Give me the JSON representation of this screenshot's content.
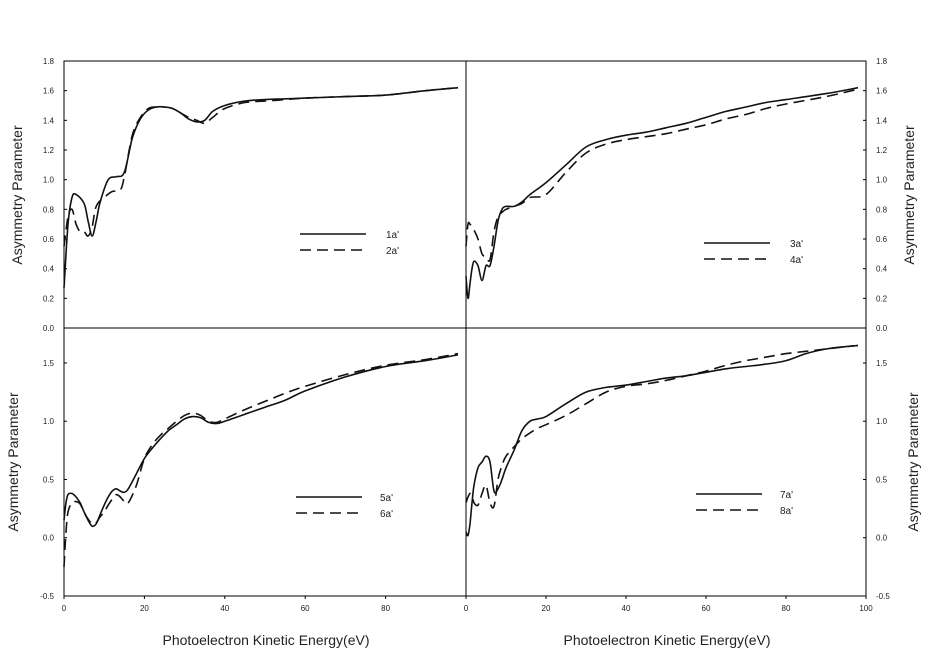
{
  "chart_data": [
    {
      "type": "line",
      "position": "top-left",
      "xlabel": "",
      "ylabel": "Asymmetry Parameter",
      "xlim": [
        0,
        100
      ],
      "ylim": [
        0.0,
        1.8
      ],
      "yticks": [
        "0.0",
        "0.2",
        "0.4",
        "0.6",
        "0.8",
        "1.0",
        "1.2",
        "1.4",
        "1.6",
        "1.8"
      ],
      "xticks": [],
      "legend_placement": "center-right",
      "series": [
        {
          "name": "1a'",
          "style": "solid",
          "x": [
            0,
            1,
            2,
            3,
            5,
            6,
            7,
            8,
            9,
            11,
            13,
            15,
            17,
            19,
            21,
            23,
            25,
            27,
            29,
            31,
            33,
            35,
            37,
            40,
            45,
            50,
            55,
            60,
            70,
            80,
            90,
            98
          ],
          "y": [
            0.27,
            0.7,
            0.88,
            0.9,
            0.84,
            0.72,
            0.62,
            0.72,
            0.85,
            1.0,
            1.02,
            1.05,
            1.28,
            1.41,
            1.47,
            1.49,
            1.49,
            1.48,
            1.45,
            1.41,
            1.39,
            1.4,
            1.46,
            1.5,
            1.53,
            1.54,
            1.545,
            1.55,
            1.56,
            1.57,
            1.6,
            1.62
          ]
        },
        {
          "name": "2a'",
          "style": "dashed",
          "x": [
            0,
            1,
            2,
            3,
            4,
            5,
            6,
            7,
            8,
            10,
            12,
            14,
            15,
            17,
            19,
            21,
            23,
            25,
            27,
            29,
            31,
            33,
            35,
            37,
            40,
            45,
            50,
            55,
            60,
            70,
            80,
            90,
            98
          ],
          "y": [
            0.55,
            0.75,
            0.8,
            0.7,
            0.65,
            0.65,
            0.62,
            0.68,
            0.82,
            0.88,
            0.92,
            0.93,
            1.02,
            1.3,
            1.42,
            1.48,
            1.49,
            1.49,
            1.48,
            1.45,
            1.42,
            1.4,
            1.38,
            1.42,
            1.48,
            1.52,
            1.53,
            1.54,
            1.55,
            1.56,
            1.57,
            1.6,
            1.62
          ]
        }
      ],
      "legend_labels": [
        "1a'",
        "2a'"
      ]
    },
    {
      "type": "line",
      "position": "top-right",
      "xlabel": "",
      "ylabel": "Asymmetry Parameter",
      "xlim": [
        0,
        100
      ],
      "ylim": [
        0.0,
        1.8
      ],
      "yticks": [
        "0.0",
        "0.2",
        "0.4",
        "0.6",
        "0.8",
        "1.0",
        "1.2",
        "1.4",
        "1.6",
        "1.8"
      ],
      "xticks": [],
      "legend_placement": "center-right",
      "series": [
        {
          "name": "3a'",
          "style": "solid",
          "x": [
            0,
            0.5,
            1,
            1.5,
            2,
            3,
            4,
            5,
            6,
            7,
            8,
            9,
            10,
            12,
            14,
            16,
            20,
            25,
            30,
            35,
            40,
            45,
            50,
            55,
            60,
            65,
            70,
            75,
            80,
            90,
            98
          ],
          "y": [
            0.35,
            0.2,
            0.3,
            0.4,
            0.45,
            0.42,
            0.32,
            0.42,
            0.42,
            0.55,
            0.72,
            0.8,
            0.82,
            0.82,
            0.85,
            0.9,
            0.98,
            1.1,
            1.22,
            1.27,
            1.3,
            1.32,
            1.35,
            1.38,
            1.42,
            1.46,
            1.49,
            1.52,
            1.54,
            1.58,
            1.62
          ]
        },
        {
          "name": "4a'",
          "style": "dashed",
          "x": [
            0,
            0.5,
            1,
            2,
            3,
            4,
            5,
            6,
            7,
            8,
            9,
            10,
            12,
            14,
            16,
            20,
            25,
            30,
            35,
            40,
            45,
            50,
            55,
            60,
            65,
            70,
            75,
            80,
            90,
            98
          ],
          "y": [
            0.55,
            0.7,
            0.7,
            0.66,
            0.6,
            0.5,
            0.48,
            0.46,
            0.65,
            0.75,
            0.78,
            0.8,
            0.82,
            0.84,
            0.88,
            0.9,
            1.05,
            1.18,
            1.24,
            1.27,
            1.29,
            1.31,
            1.34,
            1.37,
            1.41,
            1.44,
            1.48,
            1.51,
            1.56,
            1.61
          ]
        }
      ],
      "legend_labels": [
        "3a'",
        "4a'"
      ]
    },
    {
      "type": "line",
      "position": "bottom-left",
      "xlabel": "Photoelectron Kinetic Energy(eV)",
      "ylabel": "Asymmetry Parameter",
      "xlim": [
        0,
        100
      ],
      "ylim": [
        -0.5,
        1.8
      ],
      "yticks": [
        "-0.5",
        "0.0",
        "0.5",
        "1.0",
        "1.5"
      ],
      "xticks": [
        "0",
        "20",
        "40",
        "60",
        "80"
      ],
      "legend_placement": "center-right",
      "series": [
        {
          "name": "5a'",
          "style": "solid",
          "x": [
            0,
            0.5,
            1,
            2,
            3,
            4,
            5,
            6,
            7,
            8,
            9,
            10,
            11,
            12,
            13,
            14,
            15,
            16,
            18,
            20,
            22,
            24,
            26,
            28,
            30,
            32,
            34,
            36,
            38,
            40,
            45,
            50,
            55,
            60,
            70,
            80,
            90,
            98
          ],
          "y": [
            0.15,
            0.3,
            0.37,
            0.38,
            0.35,
            0.3,
            0.22,
            0.15,
            0.1,
            0.12,
            0.2,
            0.28,
            0.35,
            0.4,
            0.42,
            0.4,
            0.39,
            0.42,
            0.55,
            0.68,
            0.77,
            0.85,
            0.92,
            0.97,
            1.02,
            1.04,
            1.03,
            0.99,
            0.98,
            1.0,
            1.06,
            1.12,
            1.18,
            1.26,
            1.38,
            1.47,
            1.52,
            1.57
          ]
        },
        {
          "name": "6a'",
          "style": "dashed",
          "x": [
            0,
            0.5,
            1,
            2,
            3,
            4,
            5,
            6,
            7,
            8,
            9,
            10,
            11,
            12,
            13,
            14,
            15,
            16,
            18,
            20,
            22,
            24,
            26,
            28,
            30,
            32,
            34,
            36,
            38,
            40,
            45,
            50,
            55,
            60,
            70,
            80,
            90,
            98
          ],
          "y": [
            -0.25,
            0.05,
            0.22,
            0.3,
            0.31,
            0.29,
            0.22,
            0.16,
            0.12,
            0.13,
            0.18,
            0.22,
            0.28,
            0.33,
            0.37,
            0.35,
            0.31,
            0.3,
            0.45,
            0.68,
            0.8,
            0.88,
            0.94,
            1.0,
            1.05,
            1.07,
            1.05,
            1.0,
            0.99,
            1.02,
            1.1,
            1.17,
            1.24,
            1.3,
            1.4,
            1.48,
            1.53,
            1.58
          ]
        }
      ],
      "legend_labels": [
        "5a'",
        "6a'"
      ]
    },
    {
      "type": "line",
      "position": "bottom-right",
      "xlabel": "Photoelectron Kinetic Energy(eV)",
      "ylabel": "Asymmetry Parameter",
      "xlim": [
        0,
        100
      ],
      "ylim": [
        -0.5,
        1.8
      ],
      "yticks": [
        "-0.5",
        "0.0",
        "0.5",
        "1.0",
        "1.5"
      ],
      "xticks": [
        "0",
        "20",
        "40",
        "60",
        "80",
        "100"
      ],
      "legend_placement": "center-right",
      "series": [
        {
          "name": "7a'",
          "style": "solid",
          "x": [
            0,
            0.5,
            1,
            1.5,
            2,
            3,
            4,
            5,
            6,
            7,
            8,
            9,
            10,
            12,
            14,
            16,
            18,
            20,
            25,
            30,
            35,
            40,
            45,
            50,
            55,
            60,
            65,
            70,
            75,
            80,
            85,
            90,
            95,
            98
          ],
          "y": [
            0.05,
            0.02,
            0.12,
            0.3,
            0.45,
            0.6,
            0.65,
            0.7,
            0.65,
            0.4,
            0.42,
            0.5,
            0.6,
            0.75,
            0.92,
            1.0,
            1.02,
            1.04,
            1.15,
            1.25,
            1.29,
            1.31,
            1.34,
            1.37,
            1.39,
            1.42,
            1.45,
            1.47,
            1.49,
            1.52,
            1.58,
            1.62,
            1.64,
            1.65
          ]
        },
        {
          "name": "8a'",
          "style": "dashed",
          "x": [
            0,
            0.5,
            1,
            1.5,
            2,
            3,
            4,
            5,
            6,
            7,
            8,
            9,
            10,
            12,
            14,
            16,
            18,
            20,
            25,
            30,
            35,
            40,
            45,
            50,
            55,
            60,
            65,
            70,
            75,
            80,
            85,
            90,
            95,
            98
          ],
          "y": [
            0.3,
            0.35,
            0.38,
            0.36,
            0.3,
            0.28,
            0.38,
            0.45,
            0.3,
            0.27,
            0.5,
            0.62,
            0.7,
            0.78,
            0.85,
            0.9,
            0.94,
            0.97,
            1.05,
            1.15,
            1.25,
            1.3,
            1.32,
            1.35,
            1.39,
            1.43,
            1.48,
            1.52,
            1.55,
            1.58,
            1.6,
            1.62,
            1.64,
            1.65
          ]
        }
      ],
      "legend_labels": [
        "7a'",
        "8a'"
      ]
    }
  ]
}
